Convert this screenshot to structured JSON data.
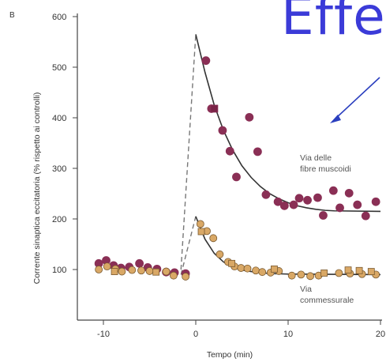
{
  "panel_label": "B",
  "overlay_title": "Effe",
  "overlay_arrow_color": "#2b3fbf",
  "colors": {
    "axis": "#444444",
    "fit_line": "#333333",
    "dashed_line": "#777777",
    "mossy_marker": "#8a2f55",
    "mossy_square": "#7a2448",
    "commissural_marker": "#d9a866",
    "commissural_stroke": "#7a5a30",
    "overlay_text": "#3b3bd8"
  },
  "chart_data": {
    "type": "scatter",
    "title": "",
    "xlabel": "Tempo (min)",
    "ylabel": "Corrente sinaptica eccitatoria (% rispetto ai controlli)",
    "xlim": [
      -12,
      20
    ],
    "ylim": [
      0,
      600
    ],
    "xticks": [
      -10,
      0,
      10,
      20
    ],
    "xtick_labels": [
      "-10",
      "0",
      "10",
      "20"
    ],
    "yticks": [
      100,
      200,
      300,
      400,
      500,
      600
    ],
    "ytick_labels": [
      "100",
      "200",
      "300",
      "400",
      "500",
      "600"
    ],
    "grid": false,
    "series": [
      {
        "name": "Via delle fibre muscoidi",
        "label_lines": [
          "Via delle",
          "fibre muscoidi"
        ],
        "marker": "circle",
        "color": "#8a2f55",
        "points": [
          [
            -10.5,
            112
          ],
          [
            -9.7,
            118
          ],
          [
            -8.9,
            108
          ],
          [
            -8.1,
            103
          ],
          [
            -7.2,
            105
          ],
          [
            -6.1,
            112
          ],
          [
            -5.2,
            104
          ],
          [
            -4.2,
            101
          ],
          [
            -3.2,
            95
          ],
          [
            -2.3,
            94
          ],
          [
            -1.1,
            92
          ],
          [
            1.1,
            513
          ],
          [
            1.7,
            418
          ],
          [
            2.9,
            375
          ],
          [
            3.7,
            334
          ],
          [
            4.4,
            283
          ],
          [
            5.8,
            401
          ],
          [
            6.7,
            333
          ],
          [
            7.6,
            248
          ],
          [
            8.9,
            234
          ],
          [
            9.6,
            226
          ],
          [
            10.6,
            228
          ],
          [
            11.2,
            241
          ],
          [
            12.1,
            237
          ],
          [
            13.2,
            242
          ],
          [
            13.8,
            207
          ],
          [
            14.9,
            256
          ],
          [
            15.6,
            222
          ],
          [
            16.6,
            251
          ],
          [
            17.5,
            228
          ],
          [
            18.4,
            206
          ],
          [
            19.5,
            234
          ]
        ],
        "square_points": [
          [
            2.0,
            418
          ]
        ],
        "fit_line": [
          [
            -1.6,
            100
          ],
          [
            0.0,
            565
          ],
          [
            1.0,
            490
          ],
          [
            2.0,
            425
          ],
          [
            3.0,
            375
          ],
          [
            4.0,
            336
          ],
          [
            5.0,
            305
          ],
          [
            6.0,
            282
          ],
          [
            7.0,
            264
          ],
          [
            8.0,
            250
          ],
          [
            9.0,
            240
          ],
          [
            10.0,
            232
          ],
          [
            11.0,
            226
          ],
          [
            12.0,
            222
          ],
          [
            13.0,
            219
          ],
          [
            14.0,
            217
          ],
          [
            15.0,
            216
          ],
          [
            20.0,
            215
          ]
        ],
        "dashed_rise": [
          [
            -1.6,
            100
          ],
          [
            0.0,
            565
          ]
        ]
      },
      {
        "name": "Via commessurale",
        "label_lines": [
          "Via",
          "commessurale"
        ],
        "marker": "circle",
        "color": "#d9a866",
        "points": [
          [
            -10.5,
            100
          ],
          [
            -9.6,
            106
          ],
          [
            -8.7,
            101
          ],
          [
            -8.0,
            96
          ],
          [
            -6.9,
            99
          ],
          [
            -5.9,
            98
          ],
          [
            -5.0,
            97
          ],
          [
            -3.2,
            96
          ],
          [
            -2.4,
            88
          ],
          [
            -1.1,
            86
          ],
          [
            0.5,
            190
          ],
          [
            1.2,
            176
          ],
          [
            1.9,
            162
          ],
          [
            2.6,
            130
          ],
          [
            3.5,
            115
          ],
          [
            4.2,
            106
          ],
          [
            4.9,
            103
          ],
          [
            5.6,
            102
          ],
          [
            6.5,
            98
          ],
          [
            7.2,
            95
          ],
          [
            8.1,
            94
          ],
          [
            9.0,
            97
          ],
          [
            10.4,
            88
          ],
          [
            11.4,
            90
          ],
          [
            12.4,
            87
          ],
          [
            13.3,
            88
          ],
          [
            15.5,
            93
          ],
          [
            16.7,
            92
          ],
          [
            18.0,
            91
          ],
          [
            19.5,
            90
          ]
        ],
        "square_points": [
          [
            -8.8,
            96
          ],
          [
            -4.3,
            95
          ],
          [
            0.6,
            175
          ],
          [
            3.9,
            112
          ],
          [
            8.5,
            101
          ],
          [
            13.9,
            93
          ],
          [
            16.5,
            99
          ],
          [
            17.7,
            98
          ],
          [
            19.0,
            96
          ]
        ],
        "fit_line": [
          [
            -1.6,
            90
          ],
          [
            0.0,
            205
          ],
          [
            1.0,
            160
          ],
          [
            2.0,
            132
          ],
          [
            3.0,
            115
          ],
          [
            4.0,
            105
          ],
          [
            5.0,
            99
          ],
          [
            6.0,
            96
          ],
          [
            7.0,
            94
          ],
          [
            8.0,
            92
          ],
          [
            10.0,
            91
          ],
          [
            20.0,
            90
          ]
        ],
        "dashed_rise": [
          [
            -1.6,
            90
          ],
          [
            0.0,
            205
          ]
        ]
      }
    ]
  }
}
